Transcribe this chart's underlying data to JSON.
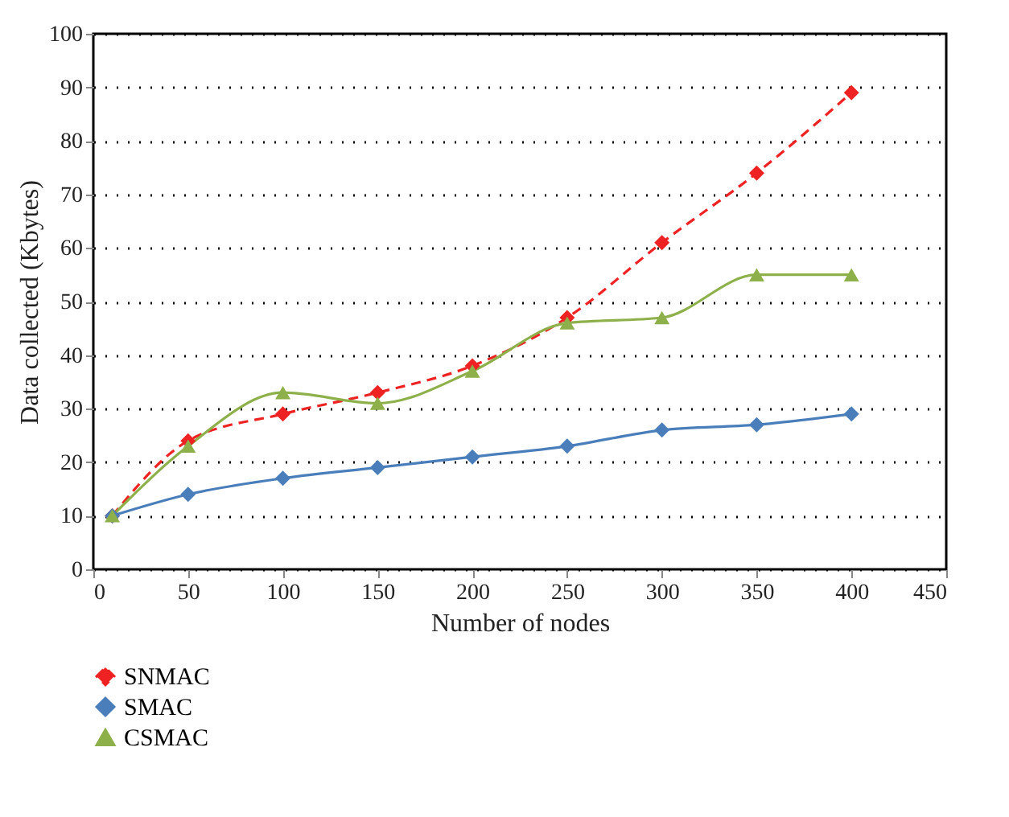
{
  "chart_data": {
    "type": "line",
    "xlabel": "Number of nodes",
    "ylabel": "Data collected (Kbytes)",
    "x": [
      10,
      50,
      100,
      150,
      200,
      250,
      300,
      350,
      400
    ],
    "series": [
      {
        "name": "SNMAC",
        "color": "#ee2222",
        "marker": "diamond",
        "line_style": "dashed",
        "values": [
          10,
          24,
          29,
          33,
          38,
          47,
          61,
          74,
          89
        ]
      },
      {
        "name": "SMAC",
        "color": "#4a7ebb",
        "marker": "diamond",
        "line_style": "solid",
        "values": [
          10,
          14,
          17,
          19,
          21,
          23,
          26,
          27,
          29
        ]
      },
      {
        "name": "CSMAC",
        "color": "#8db04a",
        "marker": "triangle",
        "line_style": "solid",
        "values": [
          10,
          23,
          33,
          31,
          37,
          46,
          47,
          55,
          55
        ]
      }
    ],
    "xlim": [
      0,
      450
    ],
    "xticks": [
      0,
      50,
      100,
      150,
      200,
      250,
      300,
      350,
      400,
      450
    ],
    "ylim": [
      0,
      100
    ],
    "yticks": [
      0,
      10,
      20,
      30,
      40,
      50,
      60,
      70,
      80,
      90,
      100
    ],
    "grid": "y",
    "legend": "bottom left"
  }
}
